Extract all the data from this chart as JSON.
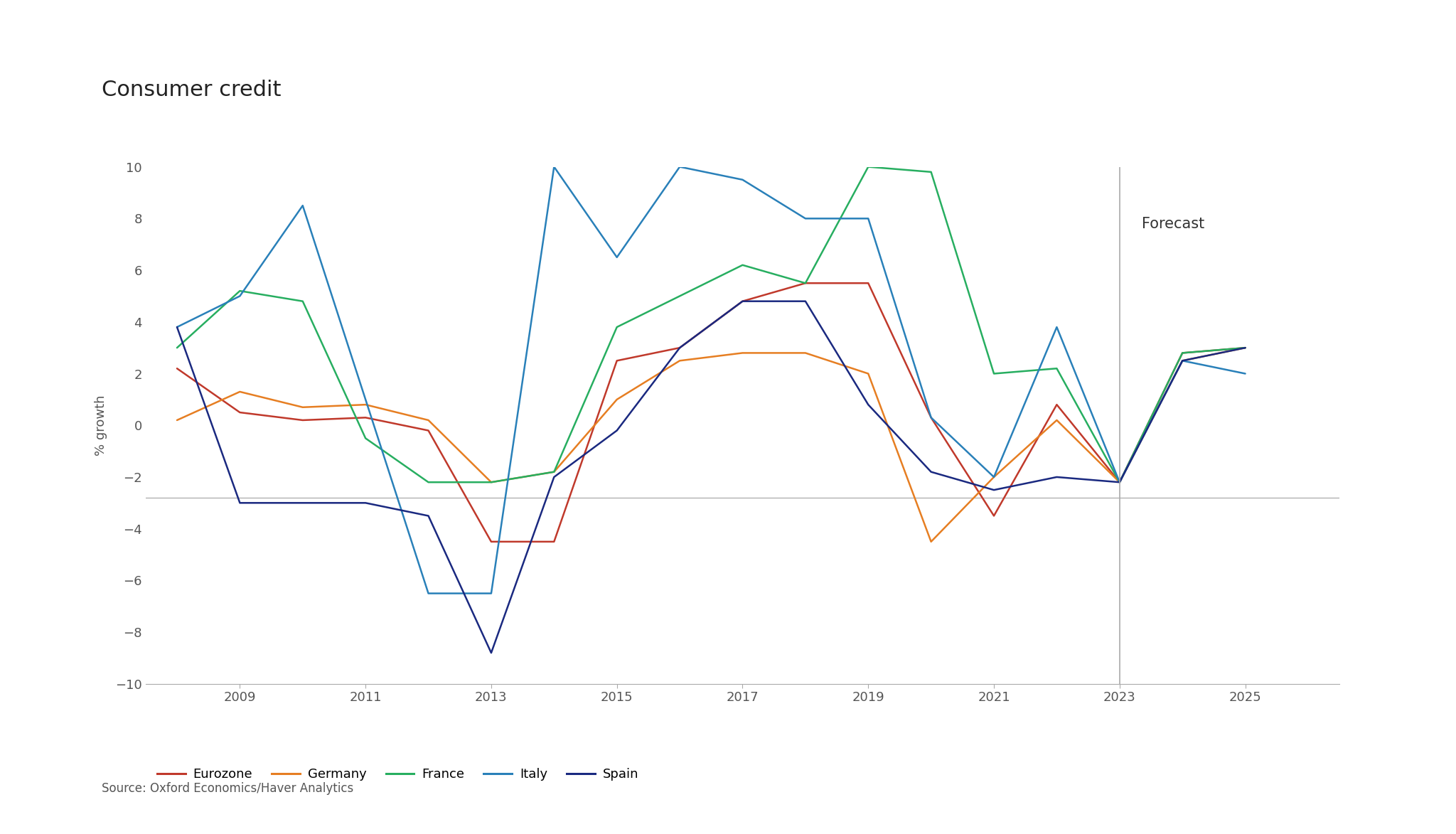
{
  "title": "Consumer credit",
  "ylabel": "% growth",
  "source": "Source: Oxford Economics/Haver Analytics",
  "forecast_label": "Forecast",
  "forecast_x": 2023,
  "ylim": [
    -10,
    10
  ],
  "yticks": [
    -10,
    -8,
    -6,
    -4,
    -2,
    0,
    2,
    4,
    6,
    8,
    10
  ],
  "xticks": [
    2009,
    2011,
    2013,
    2015,
    2017,
    2019,
    2021,
    2023,
    2025
  ],
  "xlim": [
    2007.5,
    2026.5
  ],
  "hline_y": -2.8,
  "series": {
    "Eurozone": {
      "color": "#c0392b",
      "x": [
        2008,
        2009,
        2010,
        2011,
        2012,
        2013,
        2014,
        2015,
        2016,
        2017,
        2018,
        2019,
        2020,
        2021,
        2022,
        2023,
        2024,
        2025
      ],
      "y": [
        2.2,
        0.5,
        0.2,
        0.3,
        -0.2,
        -4.5,
        -4.5,
        2.5,
        3.0,
        4.8,
        5.5,
        5.5,
        0.3,
        -3.5,
        0.8,
        -2.2,
        2.8,
        3.0
      ]
    },
    "Germany": {
      "color": "#e67e22",
      "x": [
        2008,
        2009,
        2010,
        2011,
        2012,
        2013,
        2014,
        2015,
        2016,
        2017,
        2018,
        2019,
        2020,
        2021,
        2022,
        2023,
        2024,
        2025
      ],
      "y": [
        0.2,
        1.3,
        0.7,
        0.8,
        0.2,
        -2.2,
        -1.8,
        1.0,
        2.5,
        2.8,
        2.8,
        2.0,
        -4.5,
        -2.0,
        0.2,
        -2.2,
        2.5,
        3.0
      ]
    },
    "France": {
      "color": "#27ae60",
      "x": [
        2008,
        2009,
        2010,
        2011,
        2012,
        2013,
        2014,
        2015,
        2016,
        2017,
        2018,
        2019,
        2020,
        2021,
        2022,
        2023,
        2024,
        2025
      ],
      "y": [
        3.0,
        5.2,
        4.8,
        -0.5,
        -2.2,
        -2.2,
        -1.8,
        3.8,
        5.0,
        6.2,
        5.5,
        10.0,
        9.8,
        2.0,
        2.2,
        -2.2,
        2.8,
        3.0
      ]
    },
    "Italy": {
      "color": "#2980b9",
      "x": [
        2008,
        2009,
        2010,
        2011,
        2012,
        2013,
        2014,
        2015,
        2016,
        2017,
        2018,
        2019,
        2020,
        2021,
        2022,
        2023,
        2024,
        2025
      ],
      "y": [
        3.8,
        5.0,
        8.5,
        1.0,
        -6.5,
        -6.5,
        10.0,
        6.5,
        10.0,
        9.5,
        8.0,
        8.0,
        0.3,
        -2.0,
        3.8,
        -2.2,
        2.5,
        2.0
      ]
    },
    "Spain": {
      "color": "#1a2980",
      "x": [
        2008,
        2009,
        2010,
        2011,
        2012,
        2013,
        2014,
        2015,
        2016,
        2017,
        2018,
        2019,
        2020,
        2021,
        2022,
        2023,
        2024,
        2025
      ],
      "y": [
        3.8,
        -3.0,
        -3.0,
        -3.0,
        -3.5,
        -8.8,
        -2.0,
        -0.2,
        3.0,
        4.8,
        4.8,
        0.8,
        -1.8,
        -2.5,
        -2.0,
        -2.2,
        2.5,
        3.0
      ]
    }
  },
  "background_color": "#ffffff",
  "title_fontsize": 22,
  "ylabel_fontsize": 13,
  "tick_fontsize": 13,
  "legend_fontsize": 13,
  "source_fontsize": 12,
  "forecast_fontsize": 15
}
